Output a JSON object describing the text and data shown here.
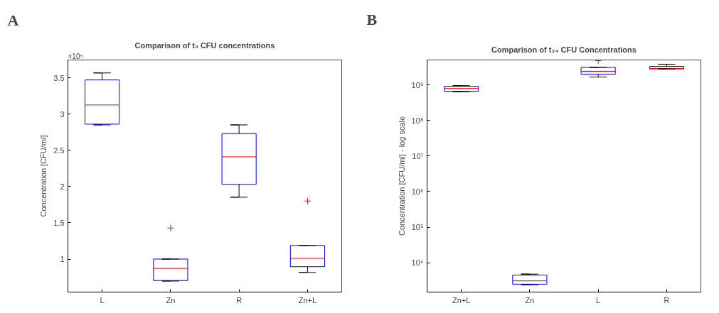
{
  "chart_data": [
    {
      "type": "box",
      "title": "Comparison of t₀ CFU concentrations",
      "ylabel": "Concentration [CFU/ml]",
      "categories": [
        "L",
        "Zn",
        "R",
        "Zn+L"
      ],
      "series": [
        {
          "color": "#0000ff",
          "boxes": [
            {
              "low": 2.85,
              "q1": 2.86,
              "median": 3.125,
              "q3": 3.47,
              "high": 3.566
            },
            {
              "low": 0.697,
              "q1": 0.704,
              "median": 0.872,
              "q3": 1.0,
              "high": 1.0,
              "outliers": [
                1.428
              ]
            },
            {
              "low": 1.853,
              "q1": 2.03,
              "median": 2.41,
              "q3": 2.73,
              "high": 2.85
            },
            {
              "low": 0.816,
              "q1": 0.895,
              "median": 1.01,
              "q3": 1.188,
              "high": 1.188,
              "outliers": [
                1.8
              ]
            }
          ]
        }
      ],
      "ylim": [
        0.545,
        3.745
      ],
      "yticks": [
        1,
        1.5,
        2,
        2.5,
        3,
        3.5
      ],
      "annotations": [
        "A",
        "×10⁵"
      ],
      "grid": false
    },
    {
      "type": "box",
      "title": "Comparison of t₂₄ CFU Concentrations",
      "ylabel": "Concentration [CFU/ml] - log scale",
      "categories": [
        "Zn+L",
        "Zn",
        "L",
        "R"
      ],
      "series": [
        {
          "color": "#0000ff",
          "boxes": [
            {
              "low": 640000000,
              "q1": 660000000,
              "median": 790000000,
              "q3": 910000000,
              "high": 950000000
            },
            {
              "low": 2400,
              "q1": 2500,
              "median": 3100,
              "q3": 4500,
              "high": 4800
            },
            {
              "low": 1660000000,
              "q1": 2000000000,
              "median": 2400000000,
              "q3": 3100000000,
              "high": 3100000000,
              "outliers": [
                4800000000
              ]
            },
            {
              "low": 2800000000,
              "q1": 2800000000,
              "median": 2900000000,
              "q3": 3300000000,
              "high": 3800000000
            }
          ]
        }
      ],
      "log": true,
      "ylim": [
        1500,
        5000000000
      ],
      "yticks": [
        {
          "value": 10000,
          "label": "10⁴"
        },
        {
          "value": 100000,
          "label": "10⁵"
        },
        {
          "value": 1000000,
          "label": "10⁶"
        },
        {
          "value": 10000000,
          "label": "10⁷"
        },
        {
          "value": 100000000,
          "label": "10⁸"
        },
        {
          "value": 1000000000,
          "label": "10⁹"
        }
      ],
      "annotations": [
        "B"
      ],
      "grid": false
    }
  ]
}
